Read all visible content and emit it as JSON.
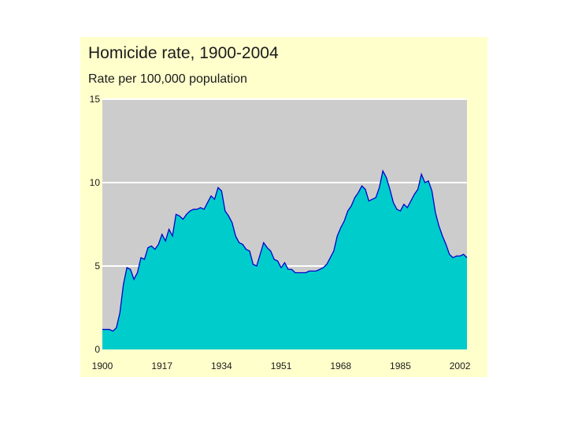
{
  "colors": {
    "panel_bg": "#ffffcc",
    "plot_bg": "#cccccc",
    "area_fill": "#00cccc",
    "area_stroke": "#0000cc",
    "gridline": "#ffffff"
  },
  "chart_data": {
    "type": "area",
    "title": "Homicide rate, 1900-2004",
    "subtitle": "Rate per 100,000 population",
    "xlabel": "",
    "ylabel": "",
    "xlim": [
      1900,
      2004
    ],
    "ylim": [
      0,
      15
    ],
    "x_ticks": [
      1900,
      1917,
      1934,
      1951,
      1968,
      1985,
      2002
    ],
    "y_ticks": [
      0,
      5,
      10,
      15
    ],
    "grid": "horizontal",
    "legend": "none",
    "series": [
      {
        "x": [
          1900,
          1901,
          1902,
          1903,
          1904,
          1905,
          1906,
          1907,
          1908,
          1909,
          1910,
          1911,
          1912,
          1913,
          1914,
          1915,
          1916,
          1917,
          1918,
          1919,
          1920,
          1921,
          1922,
          1923,
          1924,
          1925,
          1926,
          1927,
          1928,
          1929,
          1930,
          1931,
          1932,
          1933,
          1934,
          1935,
          1936,
          1937,
          1938,
          1939,
          1940,
          1941,
          1942,
          1943,
          1944,
          1945,
          1946,
          1947,
          1948,
          1949,
          1950,
          1951,
          1952,
          1953,
          1954,
          1955,
          1956,
          1957,
          1958,
          1959,
          1960,
          1961,
          1962,
          1963,
          1964,
          1965,
          1966,
          1967,
          1968,
          1969,
          1970,
          1971,
          1972,
          1973,
          1974,
          1975,
          1976,
          1977,
          1978,
          1979,
          1980,
          1981,
          1982,
          1983,
          1984,
          1985,
          1986,
          1987,
          1988,
          1989,
          1990,
          1991,
          1992,
          1993,
          1994,
          1995,
          1996,
          1997,
          1998,
          1999,
          2000,
          2001,
          2002,
          2003,
          2004
        ],
        "values": [
          1.2,
          1.2,
          1.2,
          1.1,
          1.3,
          2.2,
          3.9,
          4.9,
          4.8,
          4.2,
          4.6,
          5.5,
          5.4,
          6.1,
          6.2,
          6.0,
          6.3,
          6.9,
          6.5,
          7.2,
          6.8,
          8.1,
          8.0,
          7.8,
          8.1,
          8.3,
          8.4,
          8.4,
          8.5,
          8.4,
          8.8,
          9.2,
          9.0,
          9.7,
          9.5,
          8.3,
          8.0,
          7.6,
          6.8,
          6.4,
          6.3,
          6.0,
          5.9,
          5.1,
          5.0,
          5.7,
          6.4,
          6.1,
          5.9,
          5.4,
          5.3,
          4.9,
          5.2,
          4.8,
          4.8,
          4.6,
          4.6,
          4.6,
          4.6,
          4.7,
          4.7,
          4.7,
          4.8,
          4.9,
          5.1,
          5.5,
          5.9,
          6.8,
          7.3,
          7.7,
          8.3,
          8.6,
          9.1,
          9.4,
          9.8,
          9.6,
          8.9,
          9.0,
          9.1,
          9.7,
          10.7,
          10.3,
          9.6,
          8.8,
          8.4,
          8.3,
          8.7,
          8.5,
          8.9,
          9.3,
          9.6,
          10.5,
          10.0,
          10.1,
          9.5,
          8.2,
          7.4,
          6.8,
          6.3,
          5.7,
          5.5,
          5.6,
          5.6,
          5.7,
          5.5
        ]
      }
    ]
  }
}
